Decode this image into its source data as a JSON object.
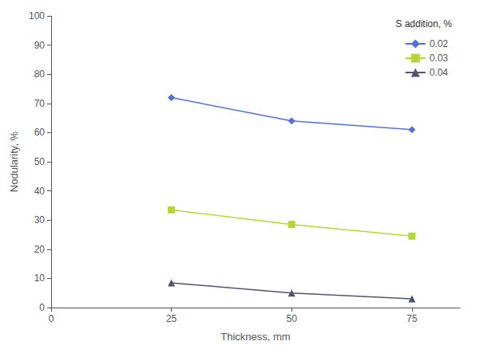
{
  "chart_data": {
    "type": "line",
    "xlabel": "Thickness, mm",
    "ylabel": "Nodularity, %",
    "x": [
      25,
      50,
      75
    ],
    "series": [
      {
        "name": "0.02",
        "values": [
          72,
          64,
          61
        ],
        "marker": "diamond"
      },
      {
        "name": "0.03",
        "values": [
          33.5,
          28.5,
          24.5
        ],
        "marker": "square"
      },
      {
        "name": "0.04",
        "values": [
          8.5,
          5,
          3
        ],
        "marker": "triangle"
      }
    ],
    "legend_title": "S addition, %",
    "legend": "upper right",
    "xlim": [
      0,
      85
    ],
    "ylim": [
      0,
      100
    ],
    "xticks": [
      0,
      25,
      50,
      75
    ],
    "yticks": [
      0,
      10,
      20,
      30,
      40,
      50,
      60,
      70,
      80,
      90,
      100
    ],
    "grid": false
  }
}
